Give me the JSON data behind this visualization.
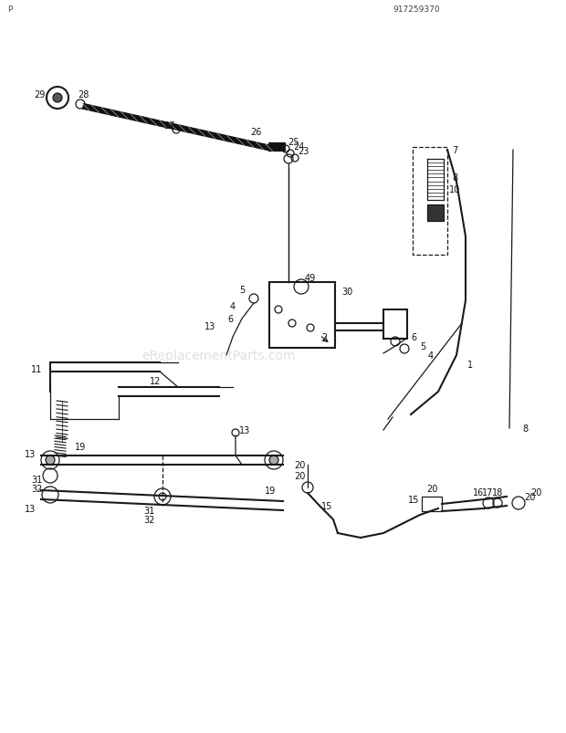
{
  "bg_color": "#ffffff",
  "line_color": "#1a1a1a",
  "fig_width": 6.2,
  "fig_height": 8.04,
  "dpi": 100,
  "watermark": "eReplacementParts.com"
}
